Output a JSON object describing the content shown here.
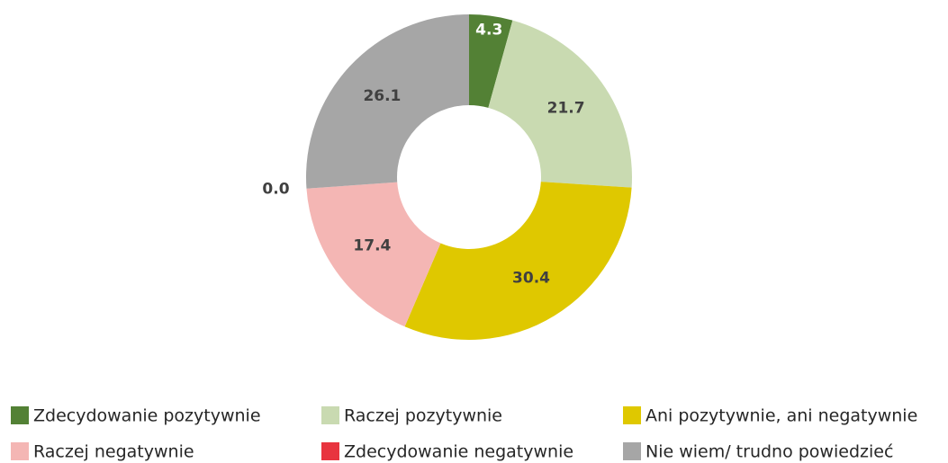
{
  "chart_data": {
    "type": "donut",
    "categories": [
      "Zdecydowanie pozytywnie",
      "Raczej pozytywnie",
      "Ani pozytywnie, ani negatywnie",
      "Raczej negatywnie",
      "Zdecydowanie negatywnie",
      "Nie wiem/ trudno powiedzieć"
    ],
    "values": [
      4.3,
      21.7,
      30.4,
      17.4,
      0.0,
      26.1
    ],
    "value_labels": [
      "4.3",
      "21.7",
      "30.4",
      "17.4",
      "0.0",
      "26.1"
    ],
    "colors": [
      "#538135",
      "#c9dab1",
      "#dfc800",
      "#f4b6b4",
      "#e8343f",
      "#a6a6a6"
    ],
    "legend": "bottom"
  }
}
